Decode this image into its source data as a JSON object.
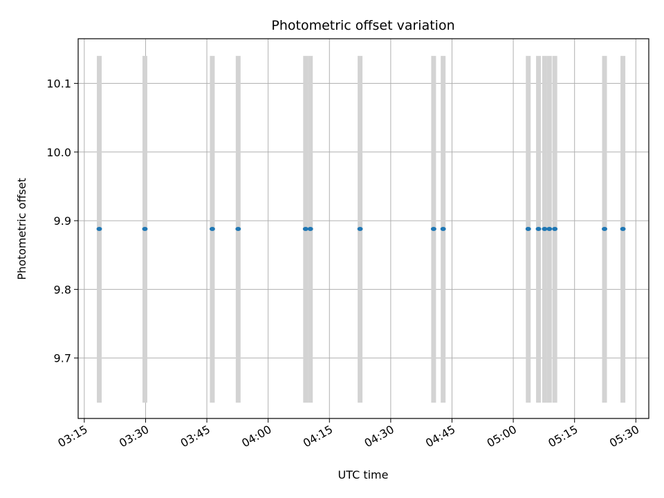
{
  "chart_data": {
    "type": "scatter",
    "title": "Photometric offset variation",
    "xlabel": "UTC time",
    "ylabel": "Photometric offset",
    "x_ticks": [
      "03:15",
      "03:30",
      "03:45",
      "04:00",
      "04:15",
      "04:30",
      "04:45",
      "05:00",
      "05:15",
      "05:30"
    ],
    "y_ticks": [
      "9.7",
      "9.8",
      "9.9",
      "10.0",
      "10.1"
    ],
    "xlim": [
      "03:13:30",
      "05:33:10"
    ],
    "ylim": [
      9.612,
      10.165
    ],
    "grid": true,
    "point_color": "#1f77b4",
    "errorbar_color": "#d3d3d3",
    "error_range": [
      9.635,
      10.14
    ],
    "points": [
      {
        "time": "03:18:40",
        "value": 9.888
      },
      {
        "time": "03:29:50",
        "value": 9.888
      },
      {
        "time": "03:46:20",
        "value": 9.888
      },
      {
        "time": "03:52:40",
        "value": 9.888
      },
      {
        "time": "04:09:10",
        "value": 9.888
      },
      {
        "time": "04:10:20",
        "value": 9.888
      },
      {
        "time": "04:22:30",
        "value": 9.888
      },
      {
        "time": "04:40:30",
        "value": 9.888
      },
      {
        "time": "04:42:50",
        "value": 9.888
      },
      {
        "time": "05:03:40",
        "value": 9.888
      },
      {
        "time": "05:06:10",
        "value": 9.888
      },
      {
        "time": "05:07:40",
        "value": 9.888
      },
      {
        "time": "05:08:50",
        "value": 9.888
      },
      {
        "time": "05:10:10",
        "value": 9.888
      },
      {
        "time": "05:22:20",
        "value": 9.888
      },
      {
        "time": "05:26:50",
        "value": 9.888
      }
    ]
  }
}
